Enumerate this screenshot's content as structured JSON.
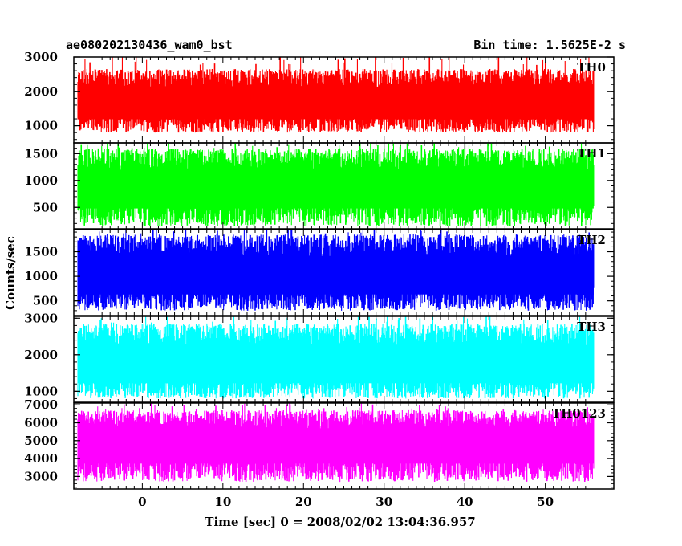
{
  "header": {
    "title": "ae080202130436_wam0_bst",
    "bin_time": "Bin time: 1.5625E-2 s"
  },
  "chart_data": {
    "type": "line",
    "title": "ae080202130436_wam0_bst",
    "subtitle": "Bin time: 1.5625E-2 s",
    "xlabel": "Time [sec] 0 = 2008/02/02 13:04:36.957",
    "ylabel": "Counts/sec",
    "xlim": [
      -8.5,
      58.5
    ],
    "x_ticks": [
      0,
      10,
      20,
      30,
      40,
      50
    ],
    "data_x_range": [
      -8.0,
      56.0
    ],
    "grid": false,
    "legend": "none",
    "panels": [
      {
        "name": "TH0",
        "color": "#ff0000",
        "ylim": [
          500,
          3000
        ],
        "y_ticks": [
          1000,
          2000,
          3000
        ],
        "mean": 1450,
        "spread_low": 800,
        "spread_high": 2650,
        "peak": 3000
      },
      {
        "name": "TH1",
        "color": "#00ff00",
        "ylim": [
          100,
          1700
        ],
        "y_ticks": [
          500,
          1000,
          1500
        ],
        "mean": 700,
        "spread_low": 150,
        "spread_high": 1600,
        "peak": 1700
      },
      {
        "name": "TH2",
        "color": "#0000ff",
        "ylim": [
          200,
          1950
        ],
        "y_ticks": [
          500,
          1000,
          1500
        ],
        "mean": 850,
        "spread_low": 300,
        "spread_high": 1850,
        "peak": 1950
      },
      {
        "name": "TH3",
        "color": "#00ffff",
        "ylim": [
          700,
          3050
        ],
        "y_ticks": [
          1000,
          2000,
          3000
        ],
        "mean": 1500,
        "spread_low": 800,
        "spread_high": 2850,
        "peak": 3050
      },
      {
        "name": "TH0123",
        "color": "#ff00ff",
        "ylim": [
          2300,
          7100
        ],
        "y_ticks": [
          3000,
          4000,
          5000,
          6000,
          7000
        ],
        "mean": 4400,
        "spread_low": 2700,
        "spread_high": 6700,
        "peak": 7000
      }
    ]
  }
}
